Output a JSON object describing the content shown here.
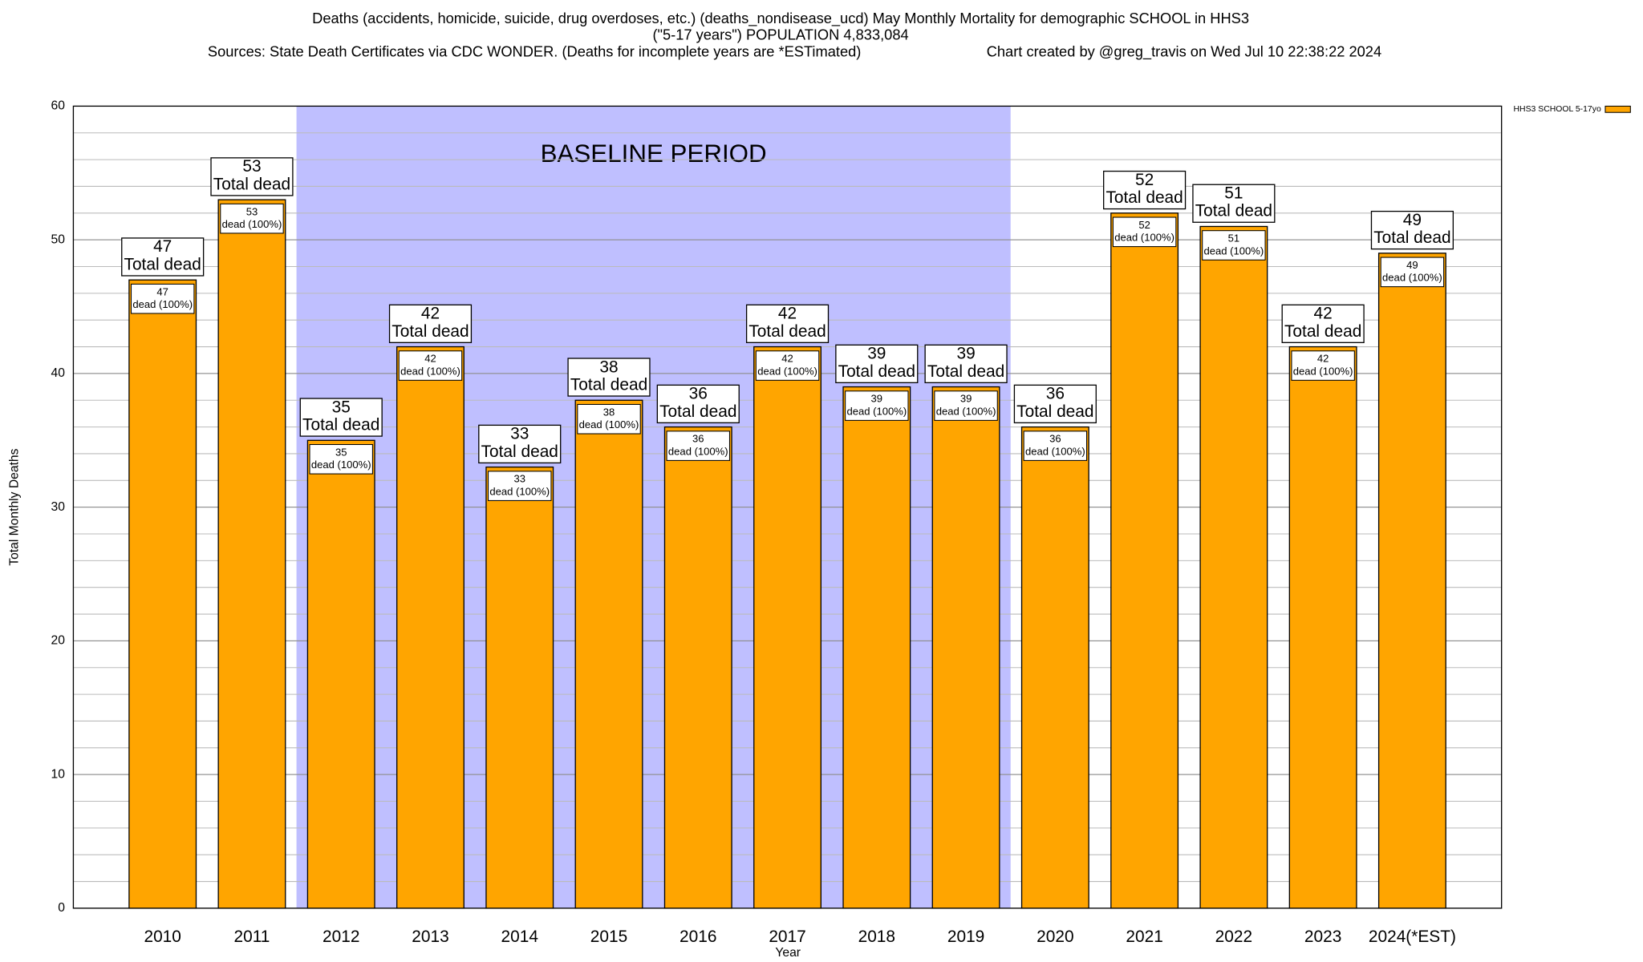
{
  "chart_data": {
    "type": "bar",
    "title": "Deaths (accidents, homicide, suicide, drug overdoses, etc.) (deaths_nondisease_ucd) May Monthly Mortality for demographic SCHOOL in HHS3",
    "subtitle": "(\"5-17 years\") POPULATION 4,833,084",
    "source": "Sources: State Death Certificates via CDC WONDER. (Deaths for incomplete years are *ESTimated)",
    "credit": "Chart created by @greg_travis on Wed Jul 10 22:38:22 2024",
    "x_label": "Year",
    "y_label": "Total Monthly Deaths",
    "categories": [
      "2010",
      "2011",
      "2012",
      "2013",
      "2014",
      "2015",
      "2016",
      "2017",
      "2018",
      "2019",
      "2020",
      "2021",
      "2022",
      "2023",
      "2024(*EST)"
    ],
    "series": [
      {
        "name": "HHS3 SCHOOL 5-17yo",
        "color": "#ffa500",
        "values": [
          47,
          53,
          35,
          42,
          33,
          38,
          36,
          42,
          39,
          39,
          36,
          52,
          51,
          42,
          49
        ]
      }
    ],
    "total_label": "Total dead",
    "segment_label": "dead (100%)",
    "baseline": {
      "label": "BASELINE PERIOD",
      "start": "2012",
      "end": "2019",
      "color": "#bfbfff"
    },
    "ylim": [
      0,
      60
    ],
    "yticks": [
      0,
      10,
      20,
      30,
      40,
      50,
      60
    ],
    "minor_grid_step": 2,
    "grid": true,
    "legend": "top-right"
  }
}
